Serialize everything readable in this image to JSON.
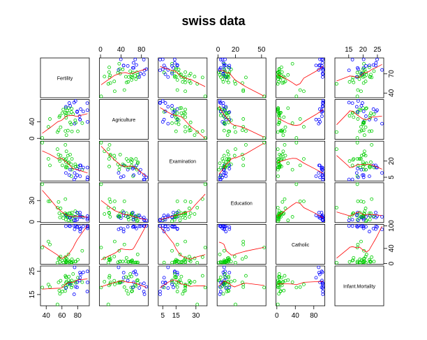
{
  "chart_data": {
    "type": "scatter-matrix",
    "title": "swiss data",
    "variables": [
      {
        "name": "Fertility",
        "lim": [
          32.7,
          94.8
        ],
        "col_ticks": [
          40,
          60,
          80
        ],
        "row_ticks": [
          40,
          70
        ],
        "values": [
          80.2,
          83.1,
          92.5,
          85.8,
          76.9,
          76.1,
          83.8,
          92.4,
          82.4,
          82.9,
          87.1,
          64.1,
          66.9,
          68.9,
          61.7,
          68.3,
          71.7,
          55.7,
          54.3,
          65.1,
          65.5,
          65.0,
          56.6,
          57.4,
          72.5,
          74.2,
          72.0,
          60.5,
          58.3,
          65.4,
          75.5,
          69.3,
          77.3,
          70.5,
          79.4,
          65.0,
          92.2,
          79.3,
          70.4,
          65.7,
          72.7,
          64.4,
          77.6,
          67.6,
          35.0,
          44.7,
          42.8
        ]
      },
      {
        "name": "Agriculture",
        "lim": [
          -2.3,
          93.2
        ],
        "col_ticks": [
          0,
          40,
          80
        ],
        "row_ticks": [
          0,
          40
        ],
        "values": [
          17.0,
          45.1,
          39.7,
          36.5,
          43.5,
          35.3,
          70.2,
          67.8,
          53.3,
          45.2,
          64.5,
          62.0,
          67.5,
          60.7,
          69.3,
          72.6,
          34.0,
          19.4,
          15.2,
          73.0,
          59.8,
          55.1,
          50.9,
          54.1,
          71.2,
          58.1,
          63.5,
          60.8,
          26.8,
          49.5,
          85.9,
          84.9,
          89.7,
          78.2,
          64.9,
          75.9,
          84.6,
          63.1,
          38.4,
          7.7,
          16.7,
          17.6,
          37.6,
          18.7,
          1.2,
          46.6,
          27.7
        ]
      },
      {
        "name": "Examination",
        "lim": [
          1.6,
          38.4
        ],
        "col_ticks": [
          5,
          15,
          30
        ],
        "row_ticks": [
          5,
          20
        ],
        "values": [
          15,
          6,
          5,
          12,
          17,
          9,
          16,
          14,
          12,
          16,
          14,
          21,
          14,
          19,
          22,
          18,
          17,
          26,
          31,
          19,
          22,
          14,
          22,
          20,
          12,
          14,
          6,
          16,
          25,
          15,
          3,
          7,
          5,
          12,
          7,
          9,
          3,
          13,
          26,
          29,
          22,
          35,
          15,
          25,
          37,
          16,
          22
        ]
      },
      {
        "name": "Education",
        "lim": [
          -1.1,
          55.1
        ],
        "col_ticks": [
          0,
          20,
          50
        ],
        "row_ticks": [
          0,
          30
        ],
        "values": [
          12,
          9,
          5,
          7,
          15,
          7,
          7,
          8,
          7,
          13,
          6,
          12,
          7,
          12,
          5,
          2,
          8,
          28,
          20,
          9,
          10,
          3,
          12,
          6,
          1,
          8,
          3,
          10,
          19,
          8,
          2,
          6,
          2,
          6,
          3,
          9,
          3,
          13,
          12,
          11,
          13,
          32,
          7,
          7,
          53,
          29,
          29
        ]
      },
      {
        "name": "Catholic",
        "lim": [
          -1.8,
          103.9
        ],
        "col_ticks": [
          0,
          40,
          80
        ],
        "row_ticks": [
          0,
          40,
          100
        ],
        "values": [
          9.96,
          84.84,
          93.4,
          33.77,
          5.16,
          90.57,
          92.85,
          97.16,
          97.67,
          91.38,
          98.61,
          8.52,
          2.27,
          4.43,
          2.82,
          24.2,
          3.3,
          12.11,
          2.15,
          2.84,
          5.23,
          4.52,
          15.14,
          4.2,
          2.4,
          5.23,
          2.56,
          7.72,
          18.46,
          6.1,
          99.71,
          99.68,
          100,
          98.96,
          98.22,
          99.06,
          99.46,
          96.83,
          5.62,
          13.79,
          11.22,
          16.92,
          4.97,
          8.65,
          42.34,
          50.43,
          58.33
        ]
      },
      {
        "name": "Infant.Mortality",
        "lim": [
          10.2,
          27.2
        ],
        "col_ticks": [
          15,
          20,
          25
        ],
        "row_ticks": [
          15,
          25
        ],
        "values": [
          22.2,
          22.2,
          20.2,
          20.3,
          20.6,
          26.6,
          23.6,
          24.9,
          21.0,
          24.4,
          24.5,
          16.5,
          19.1,
          22.7,
          18.7,
          21.2,
          20.0,
          20.2,
          10.8,
          20.0,
          18.0,
          22.4,
          16.7,
          15.3,
          21.0,
          23.8,
          18.0,
          16.3,
          20.9,
          22.5,
          15.1,
          19.8,
          18.3,
          19.4,
          20.2,
          17.8,
          16.3,
          18.1,
          20.3,
          20.5,
          18.9,
          23.0,
          20.0,
          19.5,
          18.0,
          18.2,
          19.3
        ]
      }
    ],
    "point_colors": [
      "#00cd00",
      "blue",
      "blue",
      "#00cd00",
      "#00cd00",
      "blue",
      "blue",
      "blue",
      "blue",
      "blue",
      "blue",
      "#00cd00",
      "#00cd00",
      "#00cd00",
      "#00cd00",
      "#00cd00",
      "#00cd00",
      "#00cd00",
      "#00cd00",
      "#00cd00",
      "#00cd00",
      "#00cd00",
      "#00cd00",
      "#00cd00",
      "#00cd00",
      "#00cd00",
      "#00cd00",
      "#00cd00",
      "#00cd00",
      "#00cd00",
      "blue",
      "blue",
      "blue",
      "blue",
      "blue",
      "blue",
      "blue",
      "blue",
      "#00cd00",
      "#00cd00",
      "#00cd00",
      "#00cd00",
      "#00cd00",
      "#00cd00",
      "#00cd00",
      "#00cd00",
      "#00cd00"
    ],
    "smooth_color": "red"
  }
}
